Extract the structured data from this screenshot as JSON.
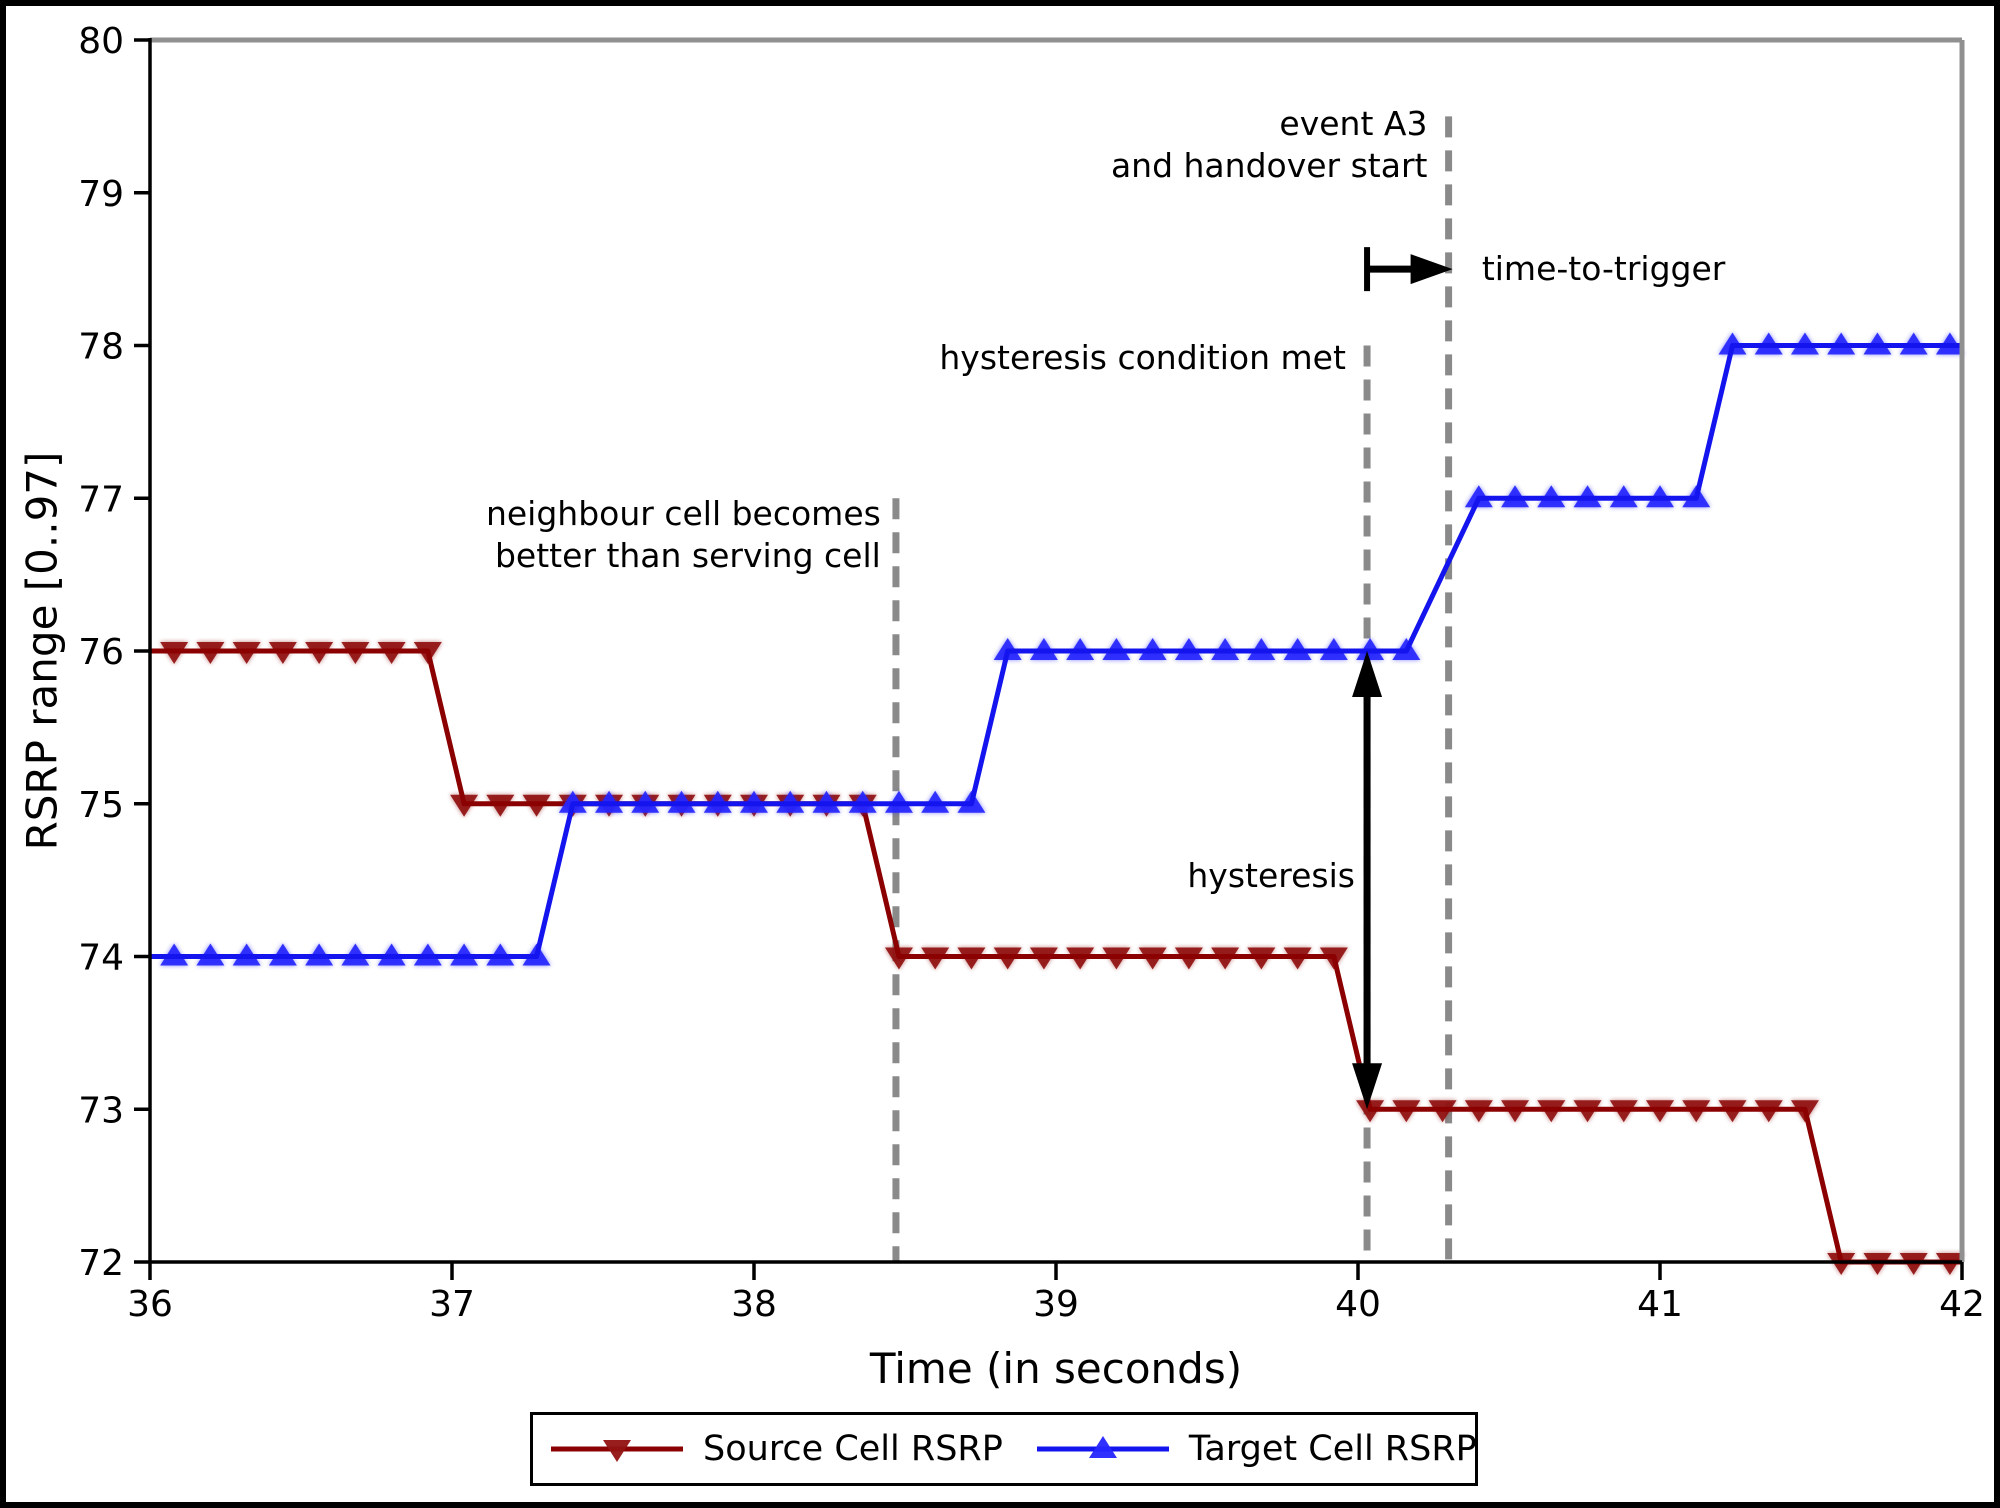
{
  "chart_data": {
    "type": "line",
    "xlabel": "Time (in seconds)",
    "ylabel": "RSRP range [0..97]",
    "xlim": [
      36,
      42
    ],
    "ylim": [
      72,
      80
    ],
    "x_ticks": [
      36,
      37,
      38,
      39,
      40,
      41,
      42
    ],
    "y_ticks": [
      72,
      73,
      74,
      75,
      76,
      77,
      78,
      79,
      80
    ],
    "grid": false,
    "legend_position": "below-outside",
    "sampling": {
      "start": 36.08,
      "interval": 0.12
    },
    "series": [
      {
        "id": "source-cell",
        "name": "Source Cell RSRP",
        "color": "#8b0000",
        "marker_color": "#921212",
        "marker": "triangle-down",
        "steps": [
          {
            "start": 36.0,
            "end": 36.92,
            "value": 76
          },
          {
            "start": 37.04,
            "end": 38.36,
            "value": 75
          },
          {
            "start": 38.48,
            "end": 39.92,
            "value": 74
          },
          {
            "start": 40.04,
            "end": 41.48,
            "value": 73
          },
          {
            "start": 41.6,
            "end": 42.0,
            "value": 72
          }
        ]
      },
      {
        "id": "target-cell",
        "name": "Target Cell RSRP",
        "color": "#1414ee",
        "marker_color": "#2626ff",
        "marker": "triangle-up",
        "steps": [
          {
            "start": 36.0,
            "end": 37.28,
            "value": 74
          },
          {
            "start": 37.4,
            "end": 38.72,
            "value": 75
          },
          {
            "start": 38.84,
            "end": 40.16,
            "value": 76
          },
          {
            "start": 40.4,
            "end": 41.12,
            "value": 77
          },
          {
            "start": 41.24,
            "end": 42.0,
            "value": 78
          }
        ]
      }
    ],
    "vlines": [
      {
        "id": "neighbour-better",
        "x": 38.47,
        "y_from": 72,
        "y_to": 77.0,
        "color": "#8a8a8a"
      },
      {
        "id": "hysteresis-met",
        "x": 40.03,
        "y_from": 72,
        "y_to": 78.0,
        "color": "#8a8a8a"
      },
      {
        "id": "event-a3",
        "x": 40.3,
        "y_from": 72,
        "y_to": 79.5,
        "color": "#8a8a8a"
      }
    ],
    "annotations": [
      {
        "id": "event-a3-label",
        "lines": [
          "event A3",
          "and handover start"
        ],
        "x": 40.23,
        "y": 79.45,
        "align": "right"
      },
      {
        "id": "time-to-trigger-label",
        "lines": [
          "time-to-trigger"
        ],
        "x": 40.41,
        "y": 78.5,
        "align": "left"
      },
      {
        "id": "hysteresis-met-label",
        "lines": [
          "hysteresis condition met"
        ],
        "x": 39.96,
        "y": 77.92,
        "align": "right"
      },
      {
        "id": "neighbour-better-label",
        "lines": [
          "neighbour cell becomes",
          "better than serving cell"
        ],
        "x": 38.42,
        "y": 76.9,
        "align": "right"
      },
      {
        "id": "hysteresis-label",
        "lines": [
          "hysteresis"
        ],
        "x": 39.99,
        "y": 74.53,
        "align": "right"
      }
    ],
    "arrows": [
      {
        "id": "hysteresis-arrow",
        "type": "double-vertical",
        "x": 40.03,
        "y_from": 73,
        "y_to": 76,
        "color": "#000000"
      },
      {
        "id": "time-to-trigger-arrow",
        "type": "bar-right",
        "x_from": 40.03,
        "x_to": 40.3,
        "y": 78.5,
        "color": "#000000"
      }
    ],
    "spine_colors": {
      "left": "#000000",
      "bottom": "#000000",
      "top": "#909090",
      "right": "#909090"
    }
  }
}
